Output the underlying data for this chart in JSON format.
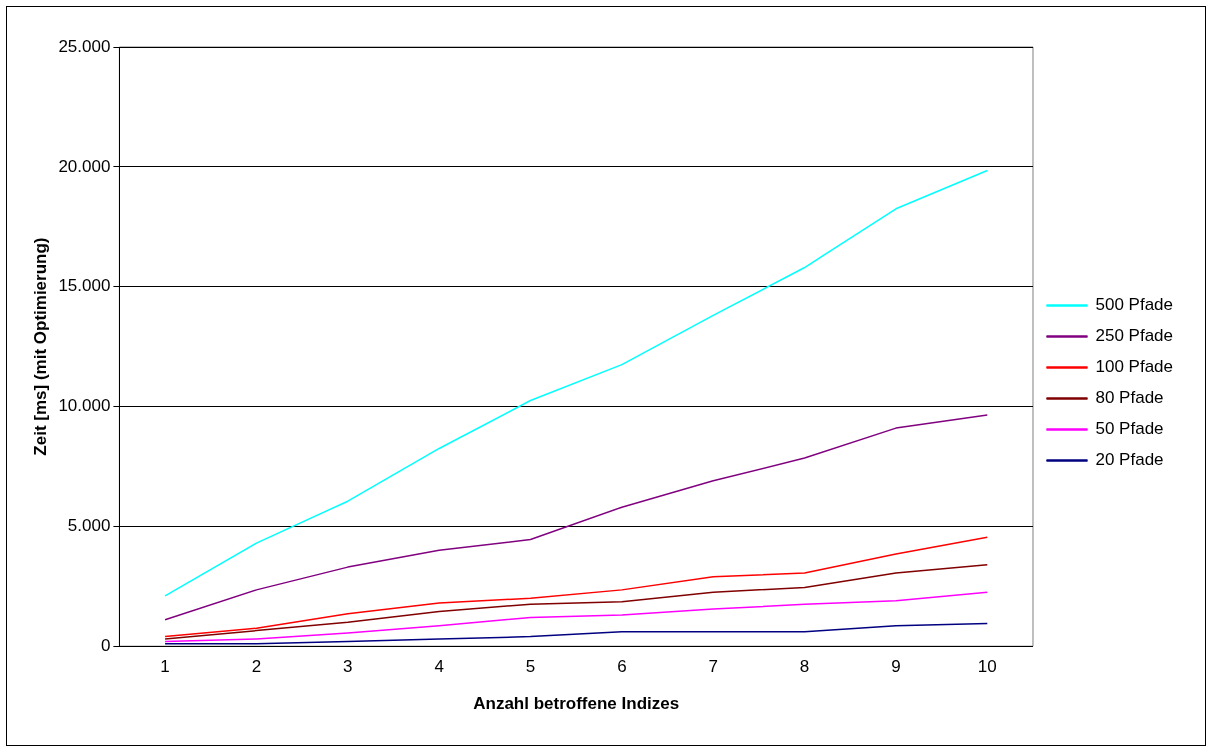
{
  "chart_data": {
    "type": "line",
    "xlabel": "Anzahl betroffene Indizes",
    "ylabel": "Zeit [ms] (mit Optimierung)",
    "categories": [
      "1",
      "2",
      "3",
      "4",
      "5",
      "6",
      "7",
      "8",
      "9",
      "10"
    ],
    "ylim": [
      0,
      25000
    ],
    "yticks": [
      {
        "value": 0,
        "label": "0"
      },
      {
        "value": 5000,
        "label": "5.000"
      },
      {
        "value": 10000,
        "label": "10.000"
      },
      {
        "value": 15000,
        "label": "15.000"
      },
      {
        "value": 20000,
        "label": "20.000"
      },
      {
        "value": 25000,
        "label": "25.000"
      }
    ],
    "grid": "y",
    "legend": "right",
    "marker": "none",
    "line_style": "solid",
    "series": [
      {
        "name": "500 Pfade",
        "color": "#00ffff",
        "values": [
          2100,
          4300,
          6050,
          8250,
          10250,
          11750,
          13800,
          15800,
          18250,
          19850
        ]
      },
      {
        "name": "250 Pfade",
        "color": "#800080",
        "values": [
          1100,
          2350,
          3300,
          4000,
          4450,
          5800,
          6900,
          7850,
          9100,
          9650
        ]
      },
      {
        "name": "100 Pfade",
        "color": "#ff0000",
        "values": [
          400,
          750,
          1350,
          1800,
          2000,
          2350,
          2900,
          3050,
          3850,
          4550
        ]
      },
      {
        "name": "80 Pfade",
        "color": "#800000",
        "values": [
          300,
          650,
          1000,
          1450,
          1750,
          1850,
          2250,
          2450,
          3050,
          3400
        ]
      },
      {
        "name": "50 Pfade",
        "color": "#ff00ff",
        "values": [
          200,
          300,
          550,
          850,
          1200,
          1300,
          1550,
          1750,
          1900,
          2250
        ]
      },
      {
        "name": "20 Pfade",
        "color": "#000080",
        "values": [
          100,
          100,
          200,
          300,
          400,
          600,
          600,
          600,
          850,
          950
        ]
      }
    ]
  }
}
